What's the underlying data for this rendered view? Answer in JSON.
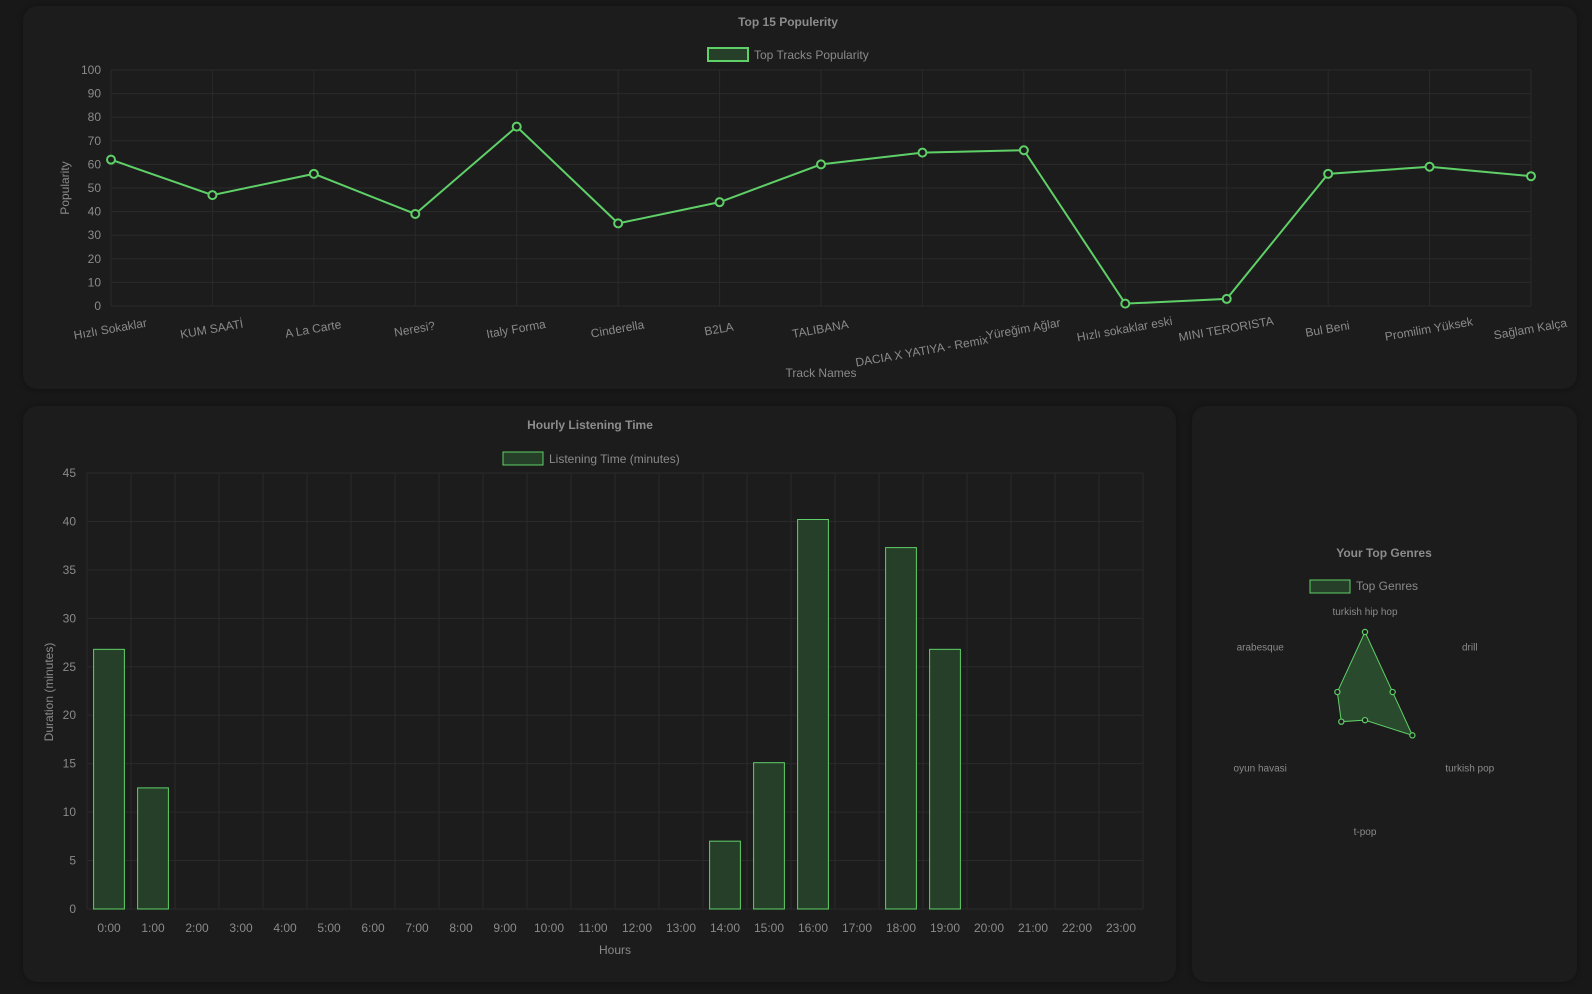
{
  "colors": {
    "line": "#5fd068",
    "bar_fill": "#263f29",
    "bar_stroke": "#5fd068",
    "radar_fill": "#2a4a2d",
    "grid": "#2a2a2a",
    "panel": "#1c1c1c",
    "background": "#181818"
  },
  "chart_data": [
    {
      "type": "line",
      "title": "Top 15 Populerity",
      "xlabel": "Track Names",
      "ylabel": "Popularity",
      "ylim": [
        0,
        100
      ],
      "yticks": [
        0,
        10,
        20,
        30,
        40,
        50,
        60,
        70,
        80,
        90,
        100
      ],
      "legend_position": "top-center",
      "categories": [
        "Hızlı Sokaklar",
        "KUM SAATİ",
        "A La Carte",
        "Neresi?",
        "Italy Forma",
        "Cinderella",
        "B2LA",
        "TALIBANA",
        "DACIA X YATIYA - Remix",
        "Yüreğim Ağlar",
        "Hızlı sokaklar eski",
        "MINI TERORISTA",
        "Bul Beni",
        "Promilim Yüksek",
        "Sağlam Kalça"
      ],
      "series": [
        {
          "name": "Top Tracks Popularity",
          "values": [
            62,
            47,
            56,
            39,
            76,
            35,
            44,
            60,
            65,
            66,
            1,
            3,
            56,
            59,
            55
          ]
        }
      ]
    },
    {
      "type": "bar",
      "title": "Hourly Listening Time",
      "xlabel": "Hours",
      "ylabel": "Duration (minutes)",
      "ylim": [
        0,
        45
      ],
      "yticks": [
        0,
        5,
        10,
        15,
        20,
        25,
        30,
        35,
        40,
        45
      ],
      "legend_position": "top-center",
      "categories": [
        "0:00",
        "1:00",
        "2:00",
        "3:00",
        "4:00",
        "5:00",
        "6:00",
        "7:00",
        "8:00",
        "9:00",
        "10:00",
        "11:00",
        "12:00",
        "13:00",
        "14:00",
        "15:00",
        "16:00",
        "17:00",
        "18:00",
        "19:00",
        "20:00",
        "21:00",
        "22:00",
        "23:00"
      ],
      "series": [
        {
          "name": "Listening Time (minutes)",
          "values": [
            26.8,
            12.5,
            0,
            0,
            0,
            0,
            0,
            0,
            0,
            0,
            0,
            0,
            0,
            0,
            7,
            15.1,
            40.2,
            0,
            37.3,
            26.8,
            0,
            0,
            0,
            0
          ]
        }
      ]
    },
    {
      "type": "radar",
      "title": "Your Top Genres",
      "legend_position": "top-center",
      "categories": [
        "turkish hip hop",
        "drill",
        "turkish pop",
        "t-pop",
        "oyun havasi",
        "arabesque"
      ],
      "series": [
        {
          "name": "Top Genres",
          "values": [
            10,
            4.2,
            7.2,
            1.6,
            3.6,
            4.2
          ]
        }
      ],
      "rmax": 10
    }
  ]
}
